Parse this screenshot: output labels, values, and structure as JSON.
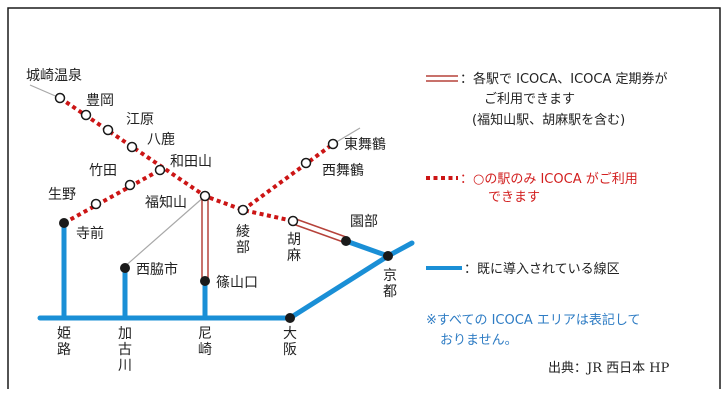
{
  "map": {
    "colors": {
      "border": "#1a1a1a",
      "existing_line": "#1a8fd6",
      "all_station_line": "#b6423a",
      "some_station_line": "#cc1515",
      "background_line": "#a8a8a8"
    },
    "stations": {
      "kinosaki": "城崎温泉",
      "toyooka": "豊岡",
      "ebara": "江原",
      "yoka": "八鹿",
      "wadayama": "和田山",
      "takeda": "竹田",
      "ikuno": "生野",
      "teramae": "寺前",
      "fukuchiyama": "福知山",
      "ayabe": "綾部",
      "higashi_maizuru": "東舞鶴",
      "nishi_maizuru": "西舞鶴",
      "gobara": "胡麻",
      "sonobe": "園部",
      "kyoto": "京都",
      "nishiwaki": "西脇市",
      "sasayamaguchi": "篠山口",
      "himeji": "姫路",
      "kakogawa": "加古川",
      "amagasaki": "尼崎",
      "osaka": "大阪"
    },
    "legend": {
      "all_stations_line1": "：各駅で ICOCA、ICOCA 定期券が",
      "all_stations_line2": "ご利用できます",
      "all_stations_line3": "(福知山駅、胡麻駅を含む)",
      "some_stations_line1": "：○の駅のみ ICOCA がご利用",
      "some_stations_line2": "できます",
      "existing": "：既に導入されている線区"
    },
    "note_line1": "※すべての ICOCA エリアは表記して",
    "note_line2": "おりません。",
    "source": "出典：JR 西日本 HP"
  }
}
